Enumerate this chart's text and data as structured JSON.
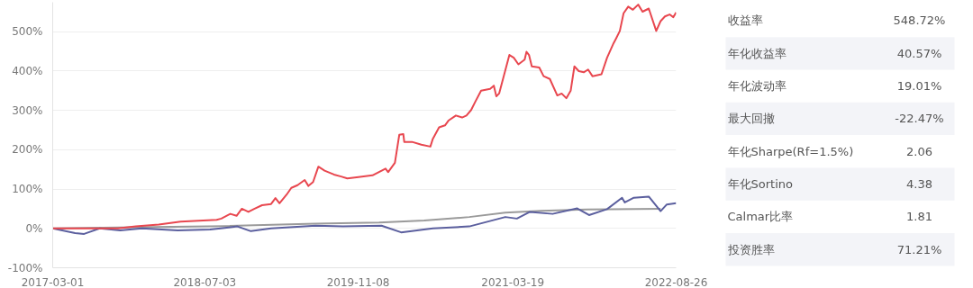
{
  "chart_data": [
    {
      "type": "line",
      "xlim": [
        "2017-03-01",
        "2022-08-26"
      ],
      "xticks": [
        "2017-03-01",
        "2018-07-03",
        "2019-11-08",
        "2021-03-19",
        "2022-08-26"
      ],
      "ylim": [
        -100,
        575
      ],
      "yticks": [
        {
          "value": -100,
          "label": "-100%"
        },
        {
          "value": 0,
          "label": "0%"
        },
        {
          "value": 100,
          "label": "100%"
        },
        {
          "value": 200,
          "label": "200%"
        },
        {
          "value": 300,
          "label": "300%"
        },
        {
          "value": 400,
          "label": "400%"
        },
        {
          "value": 500,
          "label": "500%"
        }
      ],
      "grid": "y",
      "marker": "none",
      "line_style": "solid",
      "series": [
        {
          "color": "#9a9a9a",
          "x": [
            "2017-03-01",
            "2017-11-23",
            "2018-09-09",
            "2019-06-24",
            "2020-01-14",
            "2020-06-07",
            "2020-10-30",
            "2021-02-23",
            "2021-06-18",
            "2021-11-11",
            "2022-07-07"
          ],
          "values": [
            0,
            3,
            6,
            12,
            15,
            20,
            29,
            40,
            45,
            48,
            50
          ]
        },
        {
          "color": "#5b5f9e",
          "x": [
            "2017-03-01",
            "2017-05-12",
            "2017-06-10",
            "2017-07-30",
            "2017-10-04",
            "2017-12-13",
            "2018-04-07",
            "2018-07-20",
            "2018-10-16",
            "2018-11-28",
            "2019-02-01",
            "2019-06-24",
            "2019-09-20",
            "2020-01-22",
            "2020-03-25",
            "2020-07-05",
            "2020-10-30",
            "2020-12-27",
            "2021-02-23",
            "2021-04-01",
            "2021-05-13",
            "2021-07-25",
            "2021-10-12",
            "2021-11-19",
            "2022-01-16",
            "2022-03-05",
            "2022-03-14",
            "2022-04-12",
            "2022-05-30",
            "2022-07-07",
            "2022-07-27",
            "2022-08-26"
          ],
          "values": [
            0,
            -12,
            -14,
            0,
            -5,
            0,
            -5,
            -3,
            5,
            -7,
            0,
            7,
            5,
            7,
            -10,
            0,
            5,
            17,
            29,
            25,
            42,
            37,
            51,
            34,
            49,
            78,
            66,
            78,
            81,
            44,
            61,
            64
          ]
        },
        {
          "color": "#e8474f",
          "x": [
            "2017-03-01",
            "2017-09-26",
            "2017-11-23",
            "2018-02-05",
            "2018-04-16",
            "2018-08-10",
            "2018-08-25",
            "2018-09-23",
            "2018-10-13",
            "2018-10-30",
            "2018-11-20",
            "2018-12-10",
            "2019-01-03",
            "2019-02-01",
            "2019-02-15",
            "2019-02-28",
            "2019-03-23",
            "2019-04-07",
            "2019-04-27",
            "2019-05-20",
            "2019-06-01",
            "2019-06-16",
            "2019-07-03",
            "2019-07-23",
            "2019-08-22",
            "2019-09-14",
            "2019-10-04",
            "2019-11-03",
            "2019-12-24",
            "2020-02-04",
            "2020-02-12",
            "2020-03-05",
            "2020-03-19",
            "2020-04-01",
            "2020-04-04",
            "2020-04-29",
            "2020-05-29",
            "2020-06-27",
            "2020-07-05",
            "2020-07-25",
            "2020-08-13",
            "2020-08-24",
            "2020-09-17",
            "2020-10-07",
            "2020-10-21",
            "2020-11-05",
            "2020-11-19",
            "2020-12-07",
            "2021-01-05",
            "2021-01-17",
            "2021-01-25",
            "2021-02-03",
            "2021-03-08",
            "2021-03-22",
            "2021-04-06",
            "2021-04-26",
            "2021-05-02",
            "2021-05-10",
            "2021-05-19",
            "2021-06-12",
            "2021-06-26",
            "2021-07-16",
            "2021-08-09",
            "2021-08-23",
            "2021-09-07",
            "2021-09-21",
            "2021-10-03",
            "2021-10-17",
            "2021-11-02",
            "2021-11-16",
            "2021-11-30",
            "2021-12-29",
            "2022-01-16",
            "2022-02-06",
            "2022-02-14",
            "2022-02-26",
            "2022-03-10",
            "2022-03-25",
            "2022-04-09",
            "2022-04-26",
            "2022-05-10",
            "2022-05-30",
            "2022-06-23",
            "2022-07-07",
            "2022-07-21",
            "2022-08-05",
            "2022-08-17",
            "2022-08-26"
          ],
          "values": [
            0,
            0,
            5,
            10,
            17,
            22,
            25,
            37,
            32,
            50,
            42,
            50,
            59,
            62,
            77,
            64,
            86,
            103,
            110,
            123,
            108,
            118,
            157,
            147,
            137,
            132,
            127,
            130,
            135,
            152,
            143,
            167,
            238,
            240,
            220,
            220,
            213,
            208,
            228,
            257,
            262,
            274,
            287,
            282,
            287,
            301,
            323,
            350,
            355,
            363,
            336,
            343,
            441,
            434,
            417,
            429,
            449,
            441,
            412,
            409,
            387,
            380,
            338,
            343,
            331,
            350,
            412,
            400,
            397,
            404,
            387,
            392,
            434,
            471,
            483,
            502,
            547,
            564,
            556,
            569,
            551,
            559,
            502,
            527,
            539,
            544,
            537,
            549
          ]
        }
      ]
    },
    {
      "type": "other",
      "categories": [
        "收益率",
        "年化收益率",
        "年化波动率",
        "最大回撤",
        "年化Sharpe(Rf=1.5%)",
        "年化Sortino",
        "Calmar比率",
        "投资胜率"
      ],
      "value_labels": [
        "548.72%",
        "40.57%",
        "19.01%",
        "-22.47%",
        "2.06",
        "4.38",
        "1.81",
        "71.21%"
      ]
    }
  ]
}
